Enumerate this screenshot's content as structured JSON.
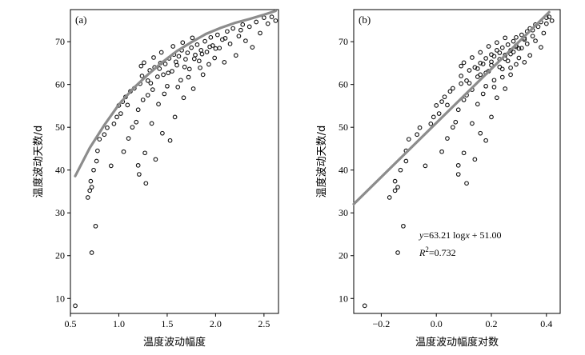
{
  "chart_data": [
    {
      "panel": "(a)",
      "type": "scatter",
      "xlabel": "温度波动幅度",
      "ylabel": "温度波动天数/d",
      "xlim": [
        0.5,
        2.65
      ],
      "ylim": [
        6.5,
        77.5
      ],
      "xticks": [
        0.5,
        1.0,
        1.5,
        2.0,
        2.5
      ],
      "xtick_labels": [
        "0.5",
        "1.0",
        "1.5",
        "2.0",
        "2.5"
      ],
      "yticks": [
        10,
        20,
        30,
        40,
        50,
        60,
        70
      ],
      "ytick_labels": [
        "10",
        "20",
        "30",
        "40",
        "50",
        "60",
        "70"
      ],
      "points": [
        [
          0.55,
          8.3
        ],
        [
          0.72,
          20.7
        ],
        [
          0.76,
          26.9
        ],
        [
          0.68,
          33.6
        ],
        [
          0.7,
          35.2
        ],
        [
          0.72,
          36.0
        ],
        [
          0.71,
          37.4
        ],
        [
          0.74,
          40.0
        ],
        [
          0.77,
          42.1
        ],
        [
          0.78,
          44.5
        ],
        [
          0.8,
          47.2
        ],
        [
          0.85,
          48.3
        ],
        [
          0.88,
          49.9
        ],
        [
          0.92,
          41.0
        ],
        [
          0.95,
          50.8
        ],
        [
          0.98,
          52.4
        ],
        [
          1.0,
          55.1
        ],
        [
          1.02,
          53.2
        ],
        [
          1.04,
          56.0
        ],
        [
          1.05,
          44.3
        ],
        [
          1.07,
          57.1
        ],
        [
          1.09,
          55.2
        ],
        [
          1.1,
          47.4
        ],
        [
          1.12,
          58.4
        ],
        [
          1.14,
          50.0
        ],
        [
          1.16,
          59.1
        ],
        [
          1.18,
          51.2
        ],
        [
          1.2,
          41.1
        ],
        [
          1.21,
          39.0
        ],
        [
          1.22,
          60.2
        ],
        [
          1.24,
          62.0
        ],
        [
          1.25,
          56.4
        ],
        [
          1.27,
          44.0
        ],
        [
          1.28,
          36.9
        ],
        [
          1.3,
          60.9
        ],
        [
          1.32,
          63.3
        ],
        [
          1.34,
          50.9
        ],
        [
          1.35,
          58.8
        ],
        [
          1.37,
          64.0
        ],
        [
          1.38,
          42.5
        ],
        [
          1.4,
          61.8
        ],
        [
          1.41,
          55.4
        ],
        [
          1.43,
          65.0
        ],
        [
          1.45,
          48.6
        ],
        [
          1.46,
          62.3
        ],
        [
          1.48,
          64.8
        ],
        [
          1.5,
          59.6
        ],
        [
          1.52,
          66.1
        ],
        [
          1.53,
          46.9
        ],
        [
          1.55,
          63.1
        ],
        [
          1.57,
          67.0
        ],
        [
          1.58,
          52.4
        ],
        [
          1.6,
          64.5
        ],
        [
          1.62,
          66.6
        ],
        [
          1.64,
          61.0
        ],
        [
          1.65,
          68.0
        ],
        [
          1.67,
          56.9
        ],
        [
          1.69,
          65.9
        ],
        [
          1.71,
          67.4
        ],
        [
          1.73,
          63.6
        ],
        [
          1.75,
          68.6
        ],
        [
          1.77,
          59.0
        ],
        [
          1.79,
          66.9
        ],
        [
          1.81,
          69.3
        ],
        [
          1.83,
          65.5
        ],
        [
          1.85,
          68.0
        ],
        [
          1.87,
          62.3
        ],
        [
          1.89,
          70.1
        ],
        [
          1.91,
          67.6
        ],
        [
          1.93,
          64.7
        ],
        [
          1.95,
          71.0
        ],
        [
          1.97,
          69.1
        ],
        [
          1.99,
          66.2
        ],
        [
          2.02,
          71.6
        ],
        [
          2.04,
          68.5
        ],
        [
          2.07,
          70.5
        ],
        [
          2.09,
          65.2
        ],
        [
          2.12,
          72.4
        ],
        [
          2.15,
          69.5
        ],
        [
          2.18,
          73.1
        ],
        [
          2.21,
          66.8
        ],
        [
          2.24,
          71.3
        ],
        [
          2.28,
          74.0
        ],
        [
          2.31,
          70.2
        ],
        [
          2.35,
          73.5
        ],
        [
          2.38,
          68.7
        ],
        [
          2.42,
          74.6
        ],
        [
          2.46,
          72.0
        ],
        [
          2.5,
          75.6
        ],
        [
          2.54,
          74.2
        ],
        [
          2.58,
          75.8
        ],
        [
          2.62,
          74.9
        ],
        [
          1.26,
          65.1
        ],
        [
          1.36,
          66.3
        ],
        [
          1.44,
          67.5
        ],
        [
          1.56,
          68.9
        ],
        [
          1.66,
          69.8
        ],
        [
          1.76,
          70.9
        ],
        [
          1.3,
          57.5
        ],
        [
          1.2,
          54.1
        ],
        [
          1.47,
          57.8
        ],
        [
          1.61,
          59.4
        ],
        [
          1.72,
          61.7
        ],
        [
          1.84,
          63.9
        ],
        [
          2.0,
          68.4
        ],
        [
          1.23,
          64.3
        ],
        [
          1.33,
          60.3
        ],
        [
          1.42,
          63.7
        ],
        [
          1.51,
          62.7
        ],
        [
          1.59,
          65.3
        ],
        [
          1.68,
          64.1
        ],
        [
          1.78,
          66.0
        ],
        [
          1.86,
          67.1
        ],
        [
          1.94,
          68.8
        ],
        [
          2.1,
          70.8
        ],
        [
          2.26,
          72.7
        ]
      ],
      "fit_curve": {
        "x": [
          0.55,
          0.7,
          0.85,
          1.0,
          1.15,
          1.3,
          1.45,
          1.6,
          1.75,
          1.9,
          2.05,
          2.2,
          2.35,
          2.5,
          2.62
        ],
        "y": [
          38.6,
          45.2,
          50.5,
          55.3,
          59.1,
          62.3,
          65.2,
          67.8,
          69.9,
          71.8,
          73.2,
          74.4,
          75.3,
          76.3,
          77.2
        ]
      }
    },
    {
      "panel": "(b)",
      "type": "scatter",
      "xlabel": "温度波动幅度对数",
      "ylabel": "温度波动天数/d",
      "xlim": [
        -0.3,
        0.45
      ],
      "ylim": [
        6.5,
        77.5
      ],
      "xticks": [
        -0.2,
        0.0,
        0.2,
        0.4
      ],
      "xtick_labels": [
        "−0.2",
        "0.0",
        "0.2",
        "0.4"
      ],
      "yticks": [
        10,
        20,
        30,
        40,
        50,
        60,
        70
      ],
      "ytick_labels": [
        "10",
        "20",
        "30",
        "40",
        "50",
        "60",
        "70"
      ],
      "points": [
        [
          -0.26,
          8.3
        ],
        [
          -0.14,
          20.7
        ],
        [
          -0.12,
          26.9
        ],
        [
          -0.17,
          33.6
        ],
        [
          -0.15,
          35.2
        ],
        [
          -0.14,
          36.0
        ],
        [
          -0.15,
          37.4
        ],
        [
          -0.13,
          40.0
        ],
        [
          -0.11,
          42.1
        ],
        [
          -0.11,
          44.5
        ],
        [
          -0.1,
          47.2
        ],
        [
          -0.07,
          48.3
        ],
        [
          -0.06,
          49.9
        ],
        [
          -0.04,
          41.0
        ],
        [
          -0.02,
          50.8
        ],
        [
          -0.01,
          52.4
        ],
        [
          0.0,
          55.1
        ],
        [
          0.01,
          53.2
        ],
        [
          0.02,
          56.0
        ],
        [
          0.02,
          44.3
        ],
        [
          0.03,
          57.1
        ],
        [
          0.04,
          55.2
        ],
        [
          0.04,
          47.4
        ],
        [
          0.05,
          58.4
        ],
        [
          0.06,
          50.0
        ],
        [
          0.06,
          59.1
        ],
        [
          0.07,
          51.2
        ],
        [
          0.08,
          41.1
        ],
        [
          0.08,
          39.0
        ],
        [
          0.09,
          60.2
        ],
        [
          0.09,
          62.0
        ],
        [
          0.1,
          56.4
        ],
        [
          0.1,
          44.0
        ],
        [
          0.11,
          36.9
        ],
        [
          0.11,
          60.9
        ],
        [
          0.12,
          63.3
        ],
        [
          0.13,
          50.9
        ],
        [
          0.13,
          58.8
        ],
        [
          0.14,
          64.0
        ],
        [
          0.14,
          42.5
        ],
        [
          0.15,
          61.8
        ],
        [
          0.15,
          55.4
        ],
        [
          0.16,
          65.0
        ],
        [
          0.16,
          48.6
        ],
        [
          0.16,
          62.3
        ],
        [
          0.17,
          64.8
        ],
        [
          0.18,
          59.6
        ],
        [
          0.18,
          66.1
        ],
        [
          0.18,
          46.9
        ],
        [
          0.19,
          63.1
        ],
        [
          0.2,
          67.0
        ],
        [
          0.2,
          52.4
        ],
        [
          0.2,
          64.5
        ],
        [
          0.21,
          66.6
        ],
        [
          0.21,
          61.0
        ],
        [
          0.22,
          68.0
        ],
        [
          0.22,
          56.9
        ],
        [
          0.23,
          65.9
        ],
        [
          0.23,
          67.4
        ],
        [
          0.24,
          63.6
        ],
        [
          0.24,
          68.6
        ],
        [
          0.25,
          59.0
        ],
        [
          0.25,
          66.9
        ],
        [
          0.26,
          69.3
        ],
        [
          0.26,
          65.5
        ],
        [
          0.27,
          68.0
        ],
        [
          0.27,
          62.3
        ],
        [
          0.28,
          70.1
        ],
        [
          0.28,
          67.6
        ],
        [
          0.29,
          64.7
        ],
        [
          0.29,
          71.0
        ],
        [
          0.29,
          69.1
        ],
        [
          0.3,
          66.2
        ],
        [
          0.31,
          71.6
        ],
        [
          0.31,
          68.5
        ],
        [
          0.32,
          70.5
        ],
        [
          0.32,
          65.2
        ],
        [
          0.33,
          72.4
        ],
        [
          0.33,
          69.5
        ],
        [
          0.34,
          73.1
        ],
        [
          0.34,
          66.8
        ],
        [
          0.35,
          71.3
        ],
        [
          0.36,
          74.0
        ],
        [
          0.36,
          70.2
        ],
        [
          0.37,
          73.5
        ],
        [
          0.38,
          68.7
        ],
        [
          0.38,
          74.6
        ],
        [
          0.39,
          72.0
        ],
        [
          0.4,
          75.6
        ],
        [
          0.4,
          74.2
        ],
        [
          0.41,
          75.8
        ],
        [
          0.42,
          74.9
        ],
        [
          0.1,
          65.1
        ],
        [
          0.13,
          66.3
        ],
        [
          0.16,
          67.5
        ],
        [
          0.19,
          68.9
        ],
        [
          0.22,
          69.8
        ],
        [
          0.25,
          70.9
        ],
        [
          0.11,
          57.5
        ],
        [
          0.08,
          54.1
        ],
        [
          0.17,
          57.8
        ],
        [
          0.21,
          59.4
        ],
        [
          0.24,
          61.7
        ],
        [
          0.27,
          63.9
        ],
        [
          0.3,
          68.4
        ],
        [
          0.09,
          64.3
        ],
        [
          0.12,
          60.3
        ],
        [
          0.15,
          63.7
        ],
        [
          0.18,
          62.7
        ],
        [
          0.2,
          65.3
        ],
        [
          0.23,
          64.1
        ],
        [
          0.25,
          66.0
        ],
        [
          0.27,
          67.1
        ],
        [
          0.29,
          68.8
        ],
        [
          0.32,
          70.8
        ],
        [
          0.35,
          72.7
        ]
      ],
      "fit_line": {
        "slope": 63.21,
        "intercept": 51.0,
        "x_range": [
          -0.3,
          0.41
        ]
      },
      "annotation_equation": {
        "y": "y",
        "eq": "=63.21 log",
        "x": "x",
        "rest": " + 51.00"
      },
      "annotation_r2": {
        "r": "R",
        "sup": "2",
        "val": "=0.732"
      }
    }
  ]
}
